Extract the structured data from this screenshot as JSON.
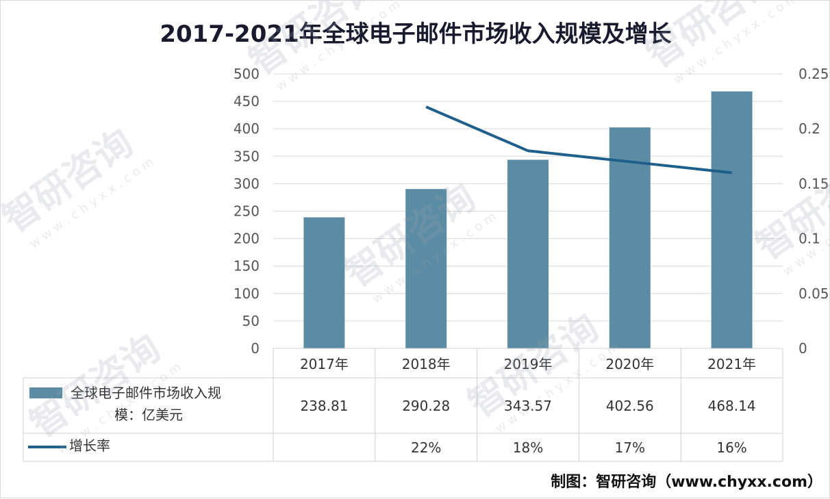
{
  "chart_data": {
    "type": "bar",
    "title": "2017-2021年全球电子邮件市场收入规模及增长",
    "categories": [
      "2017年",
      "2018年",
      "2019年",
      "2020年",
      "2021年"
    ],
    "series": [
      {
        "name": "全球电子邮件市场收入规模：亿美元",
        "kind": "bar",
        "axis": "left",
        "color": "#5b8ca3",
        "values": [
          238.81,
          290.28,
          343.57,
          402.56,
          468.14
        ],
        "labels": [
          "238.81",
          "290.28",
          "343.57",
          "402.56",
          "468.14"
        ]
      },
      {
        "name": "增长率",
        "kind": "line",
        "axis": "right",
        "color": "#1f5f8b",
        "values": [
          null,
          0.22,
          0.18,
          0.17,
          0.16
        ],
        "labels": [
          "",
          "22%",
          "18%",
          "17%",
          "16%"
        ]
      }
    ],
    "ylim_left": [
      0,
      500
    ],
    "yticks_left": [
      "0",
      "50",
      "100",
      "150",
      "200",
      "250",
      "300",
      "350",
      "400",
      "450",
      "500"
    ],
    "ylim_right": [
      0,
      0.25
    ],
    "yticks_right": [
      "0",
      "0.05",
      "0.1",
      "0.15",
      "0.2",
      "0.25"
    ],
    "grid": true,
    "legend": "data-table"
  },
  "table": {
    "bar_legend_line1": "全球电子邮件市场收入规",
    "bar_legend_line2": "模：亿美元",
    "line_legend": "增长率"
  },
  "source": "制图：智研咨询（www.chyxx.com）",
  "watermark": {
    "brand": "智研咨询",
    "url": "w w w . c h y x x . c o m"
  }
}
